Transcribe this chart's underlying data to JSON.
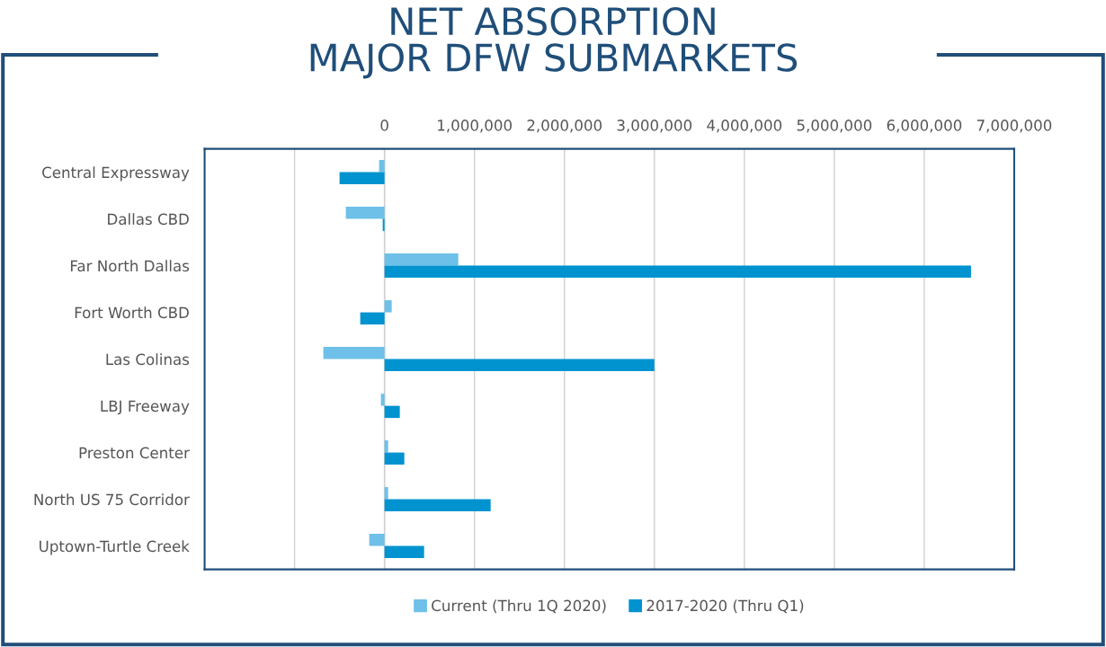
{
  "chart_data": {
    "type": "bar",
    "orientation": "horizontal",
    "title": "NET ABSORPTION\nMAJOR DFW SUBMARKETS",
    "categories": [
      "Central Expressway",
      "Dallas CBD",
      "Far North Dallas",
      "Fort Worth CBD",
      "Las Colinas",
      "LBJ Freeway",
      "Preston Center",
      "North US 75 Corridor",
      "Uptown-Turtle Creek"
    ],
    "series": [
      {
        "name": "Current (Thru 1Q 2020)",
        "color": "#6ec0e8",
        "values": [
          -60000,
          -430000,
          820000,
          80000,
          -680000,
          -40000,
          40000,
          40000,
          -170000
        ]
      },
      {
        "name": "2017-2020 (Thru Q1)",
        "color": "#0093d0",
        "values": [
          -500000,
          -20000,
          6520000,
          -270000,
          3000000,
          170000,
          220000,
          1180000,
          440000
        ]
      }
    ],
    "xlim": [
      -2000000,
      7000000
    ],
    "xticks": [
      {
        "value": -2000000,
        "label": null
      },
      {
        "value": -1000000,
        "label": null
      },
      {
        "value": 0,
        "label": "0"
      },
      {
        "value": 1000000,
        "label": "1,000,000"
      },
      {
        "value": 2000000,
        "label": "2,000,000"
      },
      {
        "value": 3000000,
        "label": "3,000,000"
      },
      {
        "value": 4000000,
        "label": "4,000,000"
      },
      {
        "value": 5000000,
        "label": "5,000,000"
      },
      {
        "value": 6000000,
        "label": "6,000,000"
      },
      {
        "value": 7000000,
        "label": "7,000,000"
      }
    ],
    "grid": "x",
    "legend": "bottom"
  }
}
